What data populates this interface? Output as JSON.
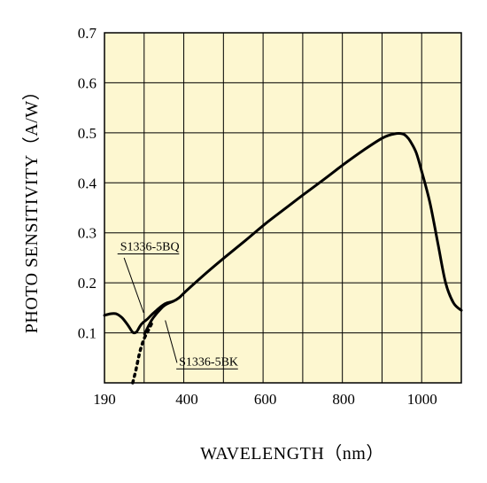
{
  "chart_data": {
    "type": "line",
    "xlabel": "WAVELENGTH（nm）",
    "ylabel": "PHOTO SENSITIVITY（A/W）",
    "xlim": [
      190,
      1100
    ],
    "ylim": [
      0,
      0.7
    ],
    "x_ticks": [
      190,
      400,
      600,
      800,
      1000
    ],
    "y_ticks": [
      0.1,
      0.2,
      0.3,
      0.4,
      0.5,
      0.6,
      0.7
    ],
    "x_tick_labels": [
      "190",
      "400",
      "600",
      "800",
      "1000"
    ],
    "y_tick_labels": [
      "0.1",
      "0.2",
      "0.3",
      "0.4",
      "0.5",
      "0.6",
      "0.7"
    ],
    "grid": true,
    "plot_background": "#fdf7d0",
    "line_color": "#000000",
    "series": [
      {
        "style": "solid",
        "x": [
          190,
          205,
          220,
          235,
          250,
          260,
          265,
          272,
          278,
          285,
          292,
          300,
          310,
          320,
          330,
          340,
          350,
          365,
          380,
          400,
          450,
          500,
          550,
          600,
          650,
          700,
          750,
          800,
          850,
          900,
          930,
          950,
          960,
          970,
          985,
          1000,
          1020,
          1040,
          1060,
          1080,
          1100
        ],
        "y": [
          0.135,
          0.138,
          0.138,
          0.13,
          0.115,
          0.103,
          0.1,
          0.102,
          0.11,
          0.118,
          0.123,
          0.128,
          0.136,
          0.143,
          0.15,
          0.156,
          0.16,
          0.163,
          0.17,
          0.185,
          0.22,
          0.253,
          0.285,
          0.318,
          0.348,
          0.378,
          0.407,
          0.437,
          0.465,
          0.49,
          0.498,
          0.498,
          0.493,
          0.483,
          0.46,
          0.42,
          0.36,
          0.28,
          0.2,
          0.16,
          0.145
        ]
      },
      {
        "style": "solid",
        "x": [
          292,
          300,
          310,
          320,
          330,
          340,
          350,
          365
        ],
        "y": [
          0.098,
          0.11,
          0.125,
          0.136,
          0.145,
          0.153,
          0.158,
          0.163
        ]
      },
      {
        "style": "dotted",
        "x": [
          262,
          270,
          278,
          285,
          292,
          300,
          310
        ],
        "y": [
          0.0,
          0.025,
          0.055,
          0.075,
          0.09,
          0.102,
          0.118
        ]
      }
    ],
    "annotations": [
      {
        "text": "S1336-5BQ",
        "label_pos": [
          230,
          0.265
        ],
        "label_anchor": "start",
        "leader": [
          [
            240,
            0.25
          ],
          [
            290,
            0.14
          ]
        ]
      },
      {
        "text": "S1336-5BK",
        "label_pos": [
          380,
          0.035
        ],
        "label_anchor": "start",
        "leader": [
          [
            345,
            0.125
          ],
          [
            375,
            0.04
          ]
        ]
      }
    ]
  }
}
